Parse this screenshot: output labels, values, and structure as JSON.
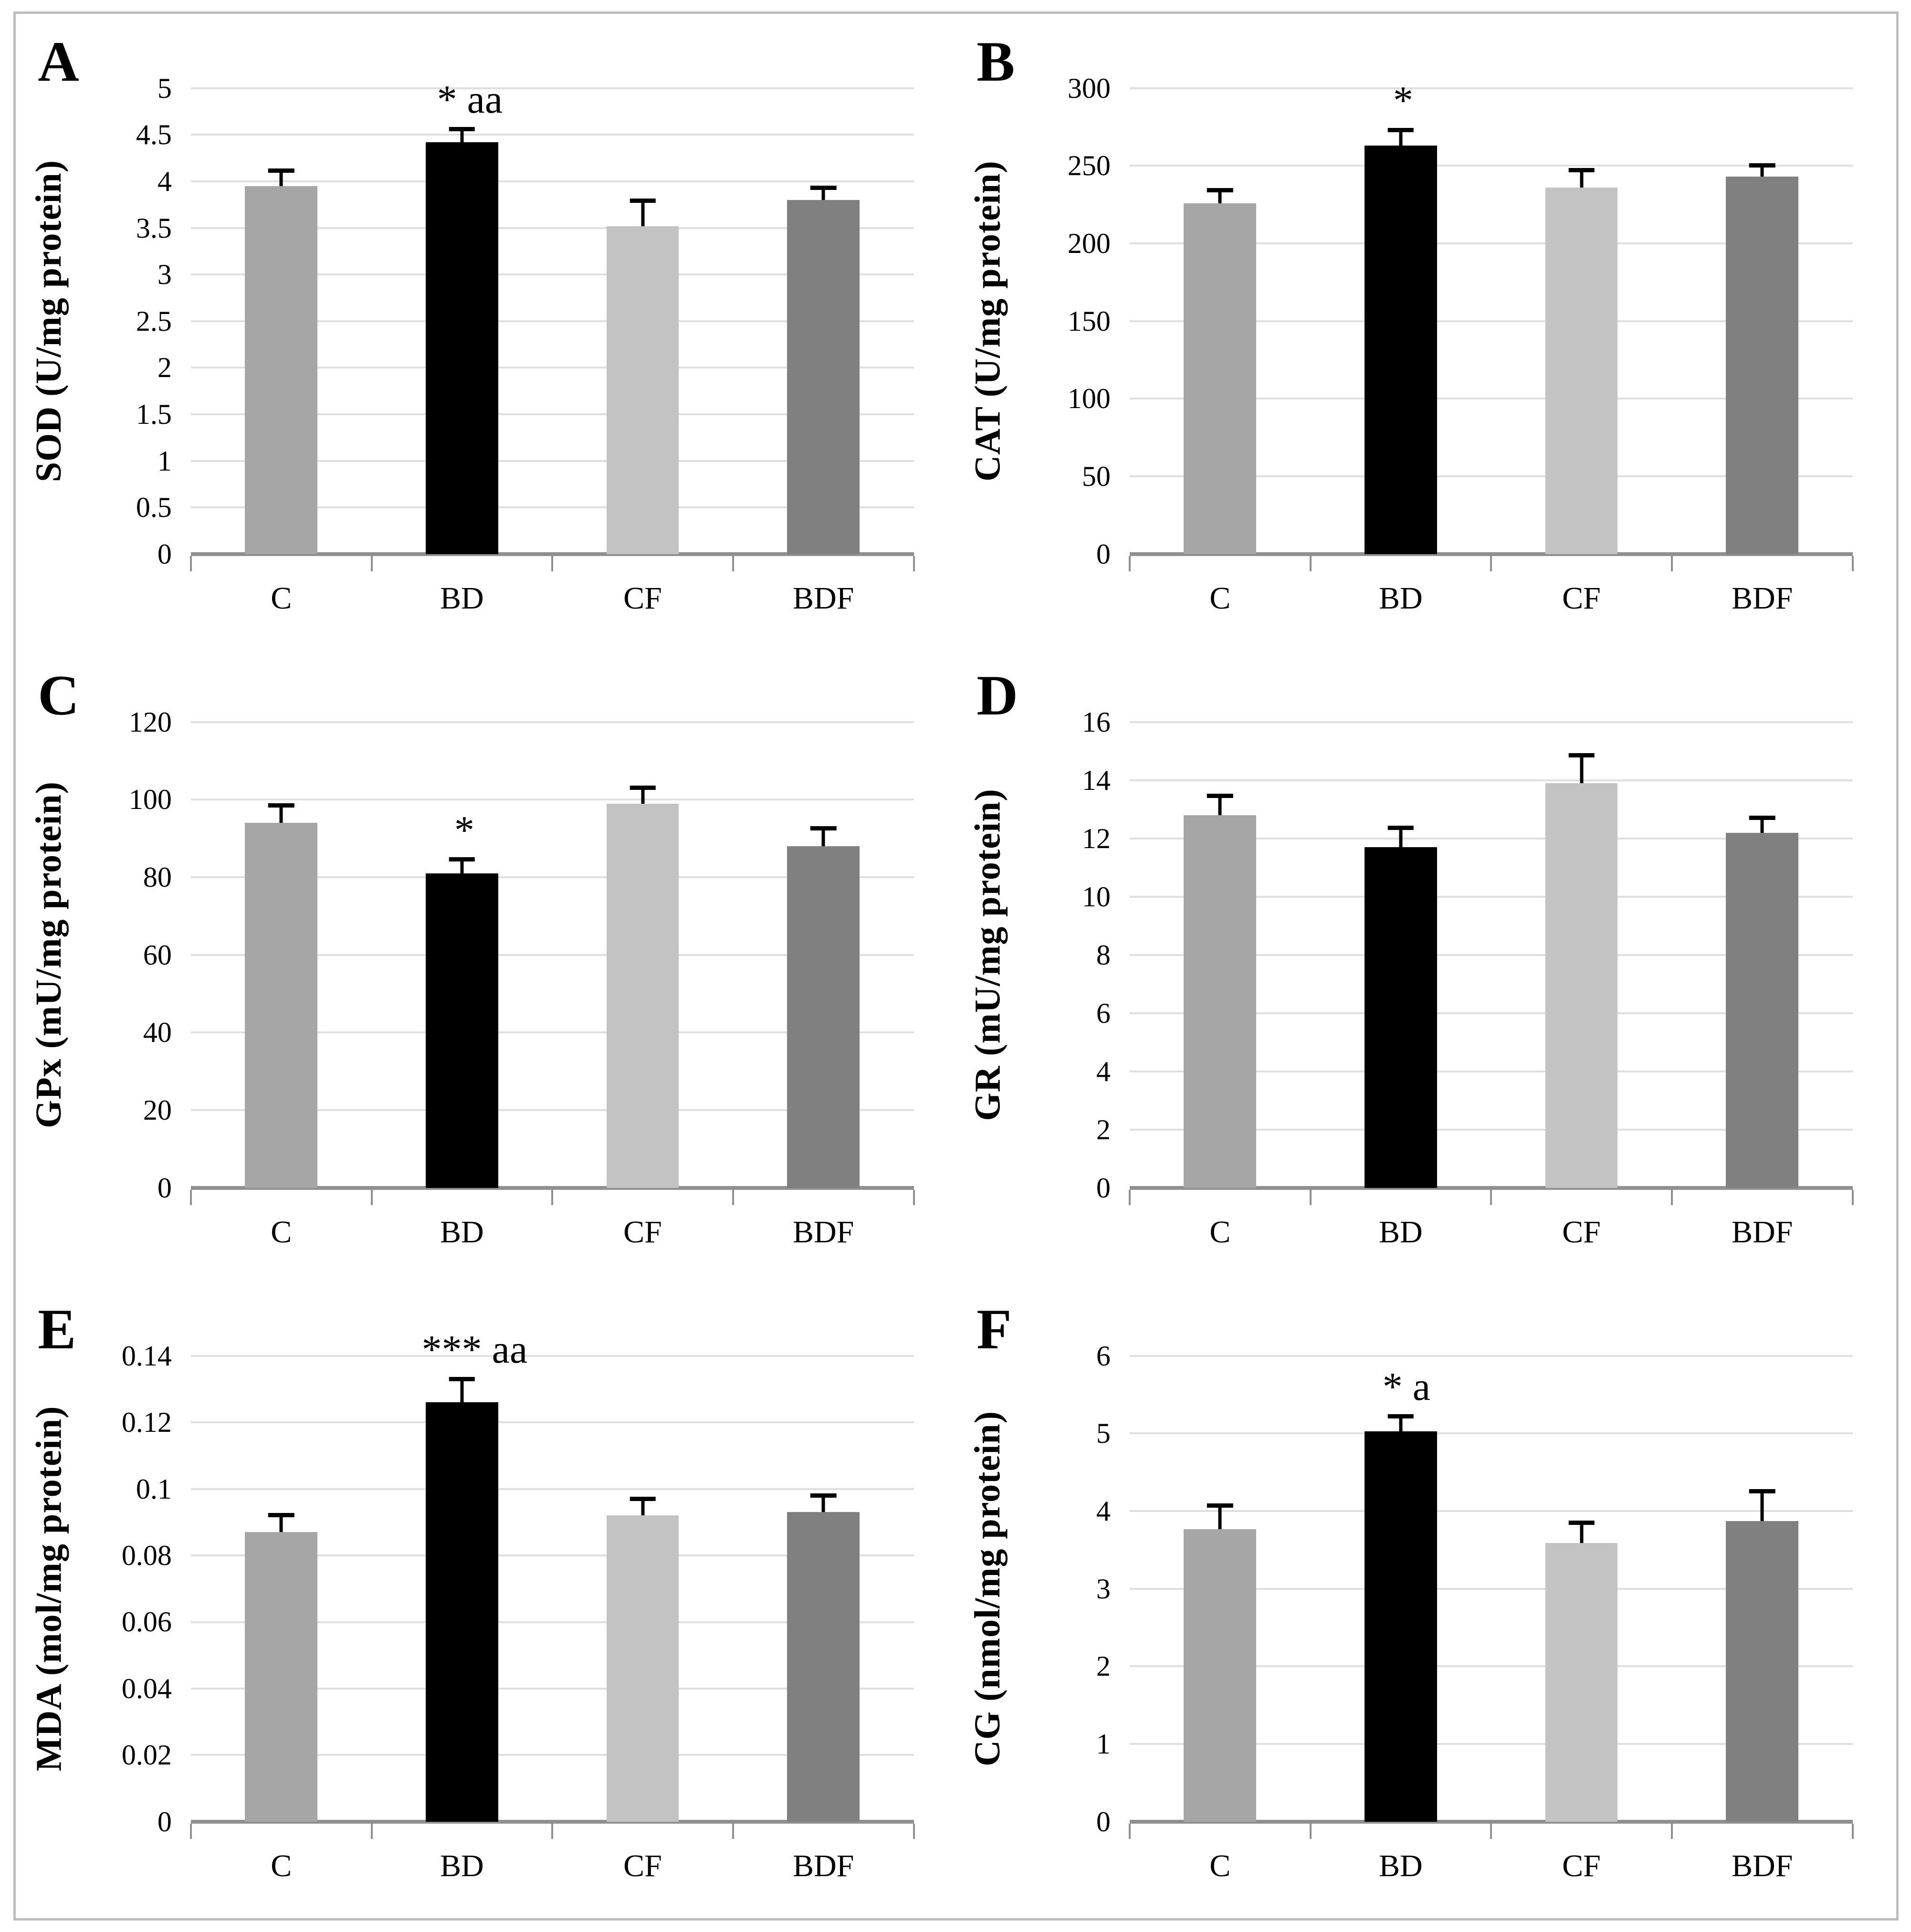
{
  "figure": {
    "description": "Six-panel bar chart figure of oxidative stress markers for groups C, BD, CF, BDF",
    "panel_letters": [
      "A",
      "B",
      "C",
      "D",
      "E",
      "F"
    ]
  },
  "style": {
    "bar_colors": [
      "#a6a6a6",
      "#000000",
      "#c3c3c3",
      "#808080"
    ],
    "gridline_color": "#dfdfdf",
    "axis_color": "#8f8f8f",
    "tick_color": "#8f8f8f",
    "error_bar_color": "#000000",
    "border_color": "#bdbdbd",
    "background": "#ffffff"
  },
  "chart_data": [
    {
      "type": "bar",
      "panel_letter": "A",
      "ylabel": "SOD (U/mg protein)",
      "xlabel": "",
      "categories": [
        "C",
        "BD",
        "CF",
        "BDF"
      ],
      "values": [
        3.95,
        4.42,
        3.52,
        3.8
      ],
      "error_upper": [
        4.11,
        4.56,
        3.79,
        3.93
      ],
      "annotations": [
        "",
        "* aa",
        "",
        ""
      ],
      "ylim": [
        0,
        5
      ],
      "ytick_step": 0.5,
      "ytick_labels": [
        "0",
        "0.5",
        "1",
        "1.5",
        "2",
        "2.5",
        "3",
        "3.5",
        "4",
        "4.5",
        "5"
      ],
      "grid": "horizontal",
      "legend": "none"
    },
    {
      "type": "bar",
      "panel_letter": "B",
      "ylabel": "CAT (U/mg protein)",
      "xlabel": "",
      "categories": [
        "C",
        "BD",
        "CF",
        "BDF"
      ],
      "values": [
        226,
        263,
        236,
        243
      ],
      "error_upper": [
        234,
        273,
        247,
        250
      ],
      "annotations": [
        "",
        "*",
        "",
        ""
      ],
      "ylim": [
        0,
        300
      ],
      "ytick_step": 50,
      "ytick_labels": [
        "0",
        "50",
        "100",
        "150",
        "200",
        "250",
        "300"
      ],
      "grid": "horizontal",
      "legend": "none"
    },
    {
      "type": "bar",
      "panel_letter": "C",
      "ylabel": "GPx (mU/mg protein)",
      "xlabel": "",
      "categories": [
        "C",
        "BD",
        "CF",
        "BDF"
      ],
      "values": [
        94,
        81,
        99,
        88
      ],
      "error_upper": [
        98.5,
        84.5,
        103,
        92.5
      ],
      "annotations": [
        "",
        "*",
        "",
        ""
      ],
      "ylim": [
        0,
        120
      ],
      "ytick_step": 20,
      "ytick_labels": [
        "0",
        "20",
        "40",
        "60",
        "80",
        "100",
        "120"
      ],
      "grid": "horizontal",
      "legend": "none"
    },
    {
      "type": "bar",
      "panel_letter": "D",
      "ylabel": "GR (mU/mg protein)",
      "xlabel": "",
      "categories": [
        "C",
        "BD",
        "CF",
        "BDF"
      ],
      "values": [
        12.8,
        11.7,
        13.9,
        12.2
      ],
      "error_upper": [
        13.45,
        12.35,
        14.85,
        12.7
      ],
      "annotations": [
        "",
        "",
        "",
        ""
      ],
      "ylim": [
        0,
        16
      ],
      "ytick_step": 2,
      "ytick_labels": [
        "0",
        "2",
        "4",
        "6",
        "8",
        "10",
        "12",
        "14",
        "16"
      ],
      "grid": "horizontal",
      "legend": "none"
    },
    {
      "type": "bar",
      "panel_letter": "E",
      "ylabel": "MDA (mol/mg protein)",
      "xlabel": "",
      "categories": [
        "C",
        "BD",
        "CF",
        "BDF"
      ],
      "values": [
        0.087,
        0.126,
        0.092,
        0.093
      ],
      "error_upper": [
        0.092,
        0.133,
        0.097,
        0.098
      ],
      "annotations": [
        "",
        "*** aa",
        "",
        ""
      ],
      "ylim": [
        0,
        0.14
      ],
      "ytick_step": 0.02,
      "ytick_labels": [
        "0",
        "0.02",
        "0.04",
        "0.06",
        "0.08",
        "0.1",
        "0.12",
        "0.14"
      ],
      "grid": "horizontal",
      "legend": "none"
    },
    {
      "type": "bar",
      "panel_letter": "F",
      "ylabel": "CG (nmol/mg protein)",
      "xlabel": "",
      "categories": [
        "C",
        "BD",
        "CF",
        "BDF"
      ],
      "values": [
        3.77,
        5.03,
        3.59,
        3.87
      ],
      "error_upper": [
        4.07,
        5.22,
        3.85,
        4.25
      ],
      "annotations": [
        "",
        "* a",
        "",
        ""
      ],
      "ylim": [
        0,
        6
      ],
      "ytick_step": 1,
      "ytick_labels": [
        "0",
        "1",
        "2",
        "3",
        "4",
        "5",
        "6"
      ],
      "grid": "horizontal",
      "legend": "none"
    }
  ]
}
